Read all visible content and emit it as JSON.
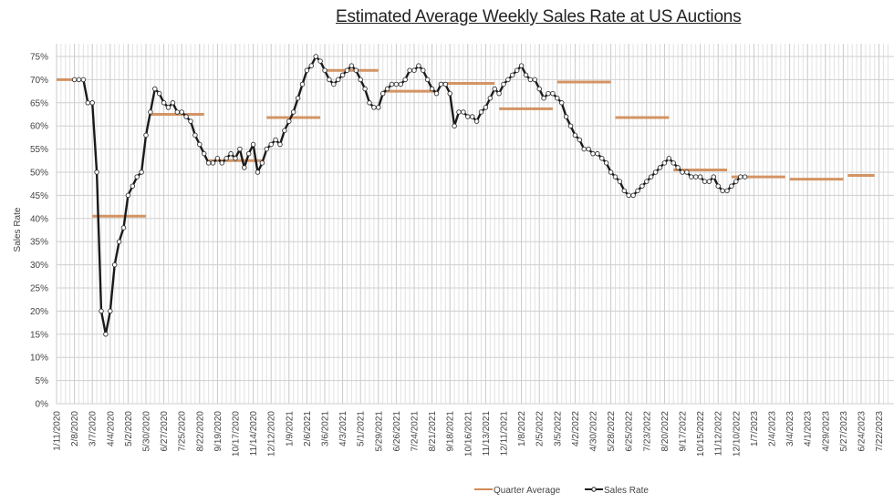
{
  "chart_data": {
    "type": "line",
    "title": "Estimated Average Weekly Sales Rate at US Auctions",
    "xlabel": "",
    "ylabel": "Sales Rate",
    "ylim": [
      0,
      75
    ],
    "yticks": [
      "0%",
      "5%",
      "10%",
      "15%",
      "20%",
      "25%",
      "30%",
      "35%",
      "40%",
      "45%",
      "50%",
      "55%",
      "60%",
      "65%",
      "70%",
      "75%"
    ],
    "grid": true,
    "legend": {
      "position": "bottom-center",
      "entries": [
        "Quarter Average",
        "Sales Rate"
      ]
    },
    "colors": {
      "sales_rate": "#1a1a1a",
      "quarter_average": "#d08a55",
      "grid": "#d4d4d4"
    },
    "x_tick_labels": [
      "1/11/2020",
      "2/8/2020",
      "3/7/2020",
      "4/4/2020",
      "5/2/2020",
      "5/30/2020",
      "6/27/2020",
      "7/25/2020",
      "8/22/2020",
      "9/19/2020",
      "10/17/2020",
      "11/14/2020",
      "12/12/2020",
      "1/9/2021",
      "2/6/2021",
      "3/6/2021",
      "4/3/2021",
      "5/1/2021",
      "5/29/2021",
      "6/26/2021",
      "7/24/2021",
      "8/21/2021",
      "9/18/2021",
      "10/16/2021",
      "11/13/2021",
      "12/11/2021",
      "1/8/2022",
      "2/5/2022",
      "3/5/2022",
      "4/2/2022",
      "4/30/2022",
      "5/28/2022",
      "6/25/2022",
      "7/23/2022",
      "8/20/2022",
      "9/17/2022",
      "10/15/2022",
      "11/12/2022",
      "12/10/2022",
      "1/7/2023",
      "2/4/2023",
      "3/4/2023",
      "4/1/2023",
      "4/29/2023",
      "5/27/2023",
      "6/24/2023",
      "7/22/2023"
    ],
    "series": [
      {
        "name": "Sales Rate",
        "start_week_label": "2/8/2020",
        "weekly_values": [
          70,
          70,
          70,
          65,
          65,
          50,
          20,
          15,
          20,
          30,
          35,
          38,
          45,
          47,
          49,
          50,
          58,
          63,
          68,
          67,
          65,
          64,
          65,
          63,
          63,
          62,
          61,
          58,
          56,
          54,
          52,
          52,
          53,
          52,
          53,
          54,
          53,
          55,
          51,
          54,
          56,
          50,
          52,
          55,
          56,
          57,
          56,
          59,
          61,
          63,
          66,
          69,
          72,
          73,
          75,
          74,
          72,
          70,
          69,
          70,
          71,
          72,
          73,
          72,
          70,
          68,
          65,
          64,
          64,
          67,
          68,
          69,
          69,
          69,
          70,
          72,
          72,
          73,
          72,
          70,
          68,
          67,
          69,
          69,
          67,
          60,
          63,
          63,
          62,
          62,
          61,
          63,
          64,
          66,
          68,
          67,
          69,
          70,
          71,
          72,
          73,
          71,
          70,
          70,
          68,
          66,
          67,
          67,
          66,
          65,
          62,
          60,
          58,
          57,
          55,
          55,
          54,
          54,
          53,
          52,
          50,
          49,
          48,
          46,
          45,
          45,
          46,
          47,
          48,
          49,
          50,
          51,
          52,
          53,
          52,
          51,
          50,
          50,
          49,
          49,
          49,
          48,
          48,
          49,
          47,
          46,
          46,
          47,
          48,
          49,
          49
        ],
        "week_spacing": "weekly"
      },
      {
        "name": "Quarter Average",
        "segments": [
          {
            "from_week": -2,
            "to_week": 4,
            "value": 70
          },
          {
            "from_week": 8,
            "to_week": 20,
            "value": 40.5
          },
          {
            "from_week": 21,
            "to_week": 33,
            "value": 62.5
          },
          {
            "from_week": 34,
            "to_week": 46,
            "value": 52.5
          },
          {
            "from_week": 47,
            "to_week": 59,
            "value": 61.8
          },
          {
            "from_week": 60,
            "to_week": 72,
            "value": 72
          },
          {
            "from_week": 73,
            "to_week": 85,
            "value": 67.5
          },
          {
            "from_week": 86,
            "to_week": 98,
            "value": 69.2
          },
          {
            "from_week": 99,
            "to_week": 111,
            "value": 63.7
          },
          {
            "from_week": 112,
            "to_week": 124,
            "value": 69.5
          },
          {
            "from_week": 125,
            "to_week": 137,
            "value": 61.8
          },
          {
            "from_week": 138,
            "to_week": 150,
            "value": 50.5
          },
          {
            "from_week": 151,
            "to_week": 163,
            "value": 49
          },
          {
            "from_week": 164,
            "to_week": 176,
            "value": 48.5
          },
          {
            "from_week": 177,
            "to_week": 183,
            "value": 49.3
          }
        ]
      }
    ]
  }
}
